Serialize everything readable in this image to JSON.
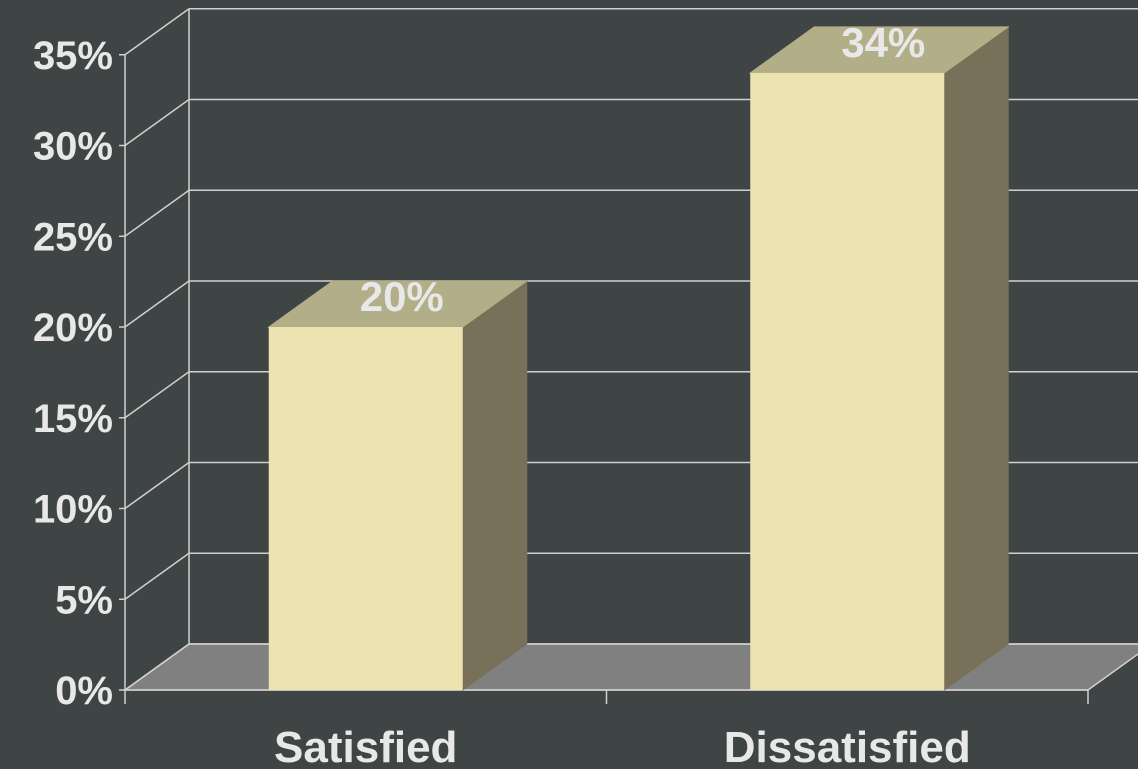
{
  "chart_data": {
    "type": "bar",
    "categories": [
      "Satisfied",
      "Dissatisfied"
    ],
    "values": [
      20,
      34
    ],
    "value_labels": [
      "20%",
      "34%"
    ],
    "y_tick_labels": [
      "0%",
      "5%",
      "10%",
      "15%",
      "20%",
      "25%",
      "30%",
      "35%"
    ],
    "y_ticks": [
      0,
      5,
      10,
      15,
      20,
      25,
      30,
      35
    ],
    "ylim": [
      0,
      35
    ],
    "title": "",
    "xlabel": "",
    "ylabel": "",
    "grid": true,
    "style": "3d"
  },
  "colors": {
    "background": "#3f4444",
    "grid": "#d0d0d0",
    "floor": "#808080",
    "bar_front": "#ebe4b0",
    "bar_top": "#b1ae88",
    "bar_side": "#787058",
    "text": "#e8e8e8"
  }
}
